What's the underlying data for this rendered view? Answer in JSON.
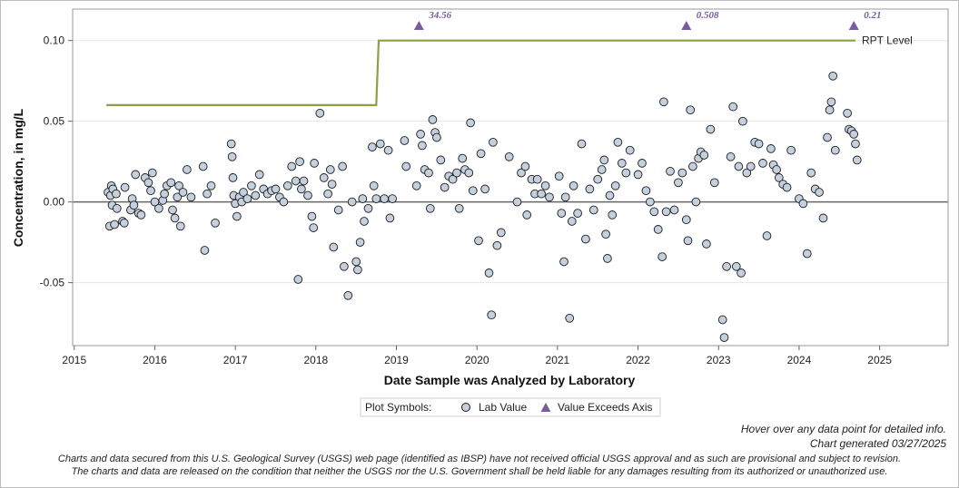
{
  "chart_data": {
    "type": "scatter",
    "xlabel": "Date Sample was Analyzed by Laboratory",
    "ylabel": "Concentration, in mg/L",
    "xlim": [
      2014.98,
      2025.85
    ],
    "ylim": [
      -0.089,
      0.1195
    ],
    "x_ticks": [
      "2015",
      "2016",
      "2017",
      "2018",
      "2019",
      "2020",
      "2021",
      "2022",
      "2023",
      "2024",
      "2025"
    ],
    "y_ticks": [
      "0.10",
      "0.05",
      "0.00",
      "-0.05"
    ],
    "grid": true,
    "reference_line": {
      "label": "RPT Level",
      "color": "#8aa144",
      "steps": [
        [
          2015.4,
          0.06
        ],
        [
          2018.75,
          0.06
        ],
        [
          2018.78,
          0.1
        ],
        [
          2024.7,
          0.1
        ]
      ]
    },
    "zero_line": 0.0,
    "legend": {
      "title": "Plot Symbols:",
      "items": [
        "Lab Value",
        "Value Exceeds Axis"
      ],
      "placement": "bottom"
    },
    "exceeds_axis": [
      {
        "x": 2019.28,
        "label": "34.56"
      },
      {
        "x": 2022.6,
        "label": "0.508"
      },
      {
        "x": 2024.68,
        "label": "0.21"
      }
    ],
    "series": [
      {
        "name": "Lab Value",
        "marker": "circle",
        "fill": "#c5d0de",
        "edge": "#1a1a1a",
        "points": [
          [
            2015.42,
            0.006
          ],
          [
            2015.44,
            -0.015
          ],
          [
            2015.45,
            0.004
          ],
          [
            2015.46,
            0.01
          ],
          [
            2015.47,
            -0.002
          ],
          [
            2015.48,
            0.008
          ],
          [
            2015.5,
            -0.014
          ],
          [
            2015.52,
            0.005
          ],
          [
            2015.53,
            -0.004
          ],
          [
            2015.6,
            -0.012
          ],
          [
            2015.62,
            -0.013
          ],
          [
            2015.63,
            0.009
          ],
          [
            2015.7,
            -0.005
          ],
          [
            2015.72,
            0.002
          ],
          [
            2015.74,
            -0.002
          ],
          [
            2015.76,
            0.017
          ],
          [
            2015.8,
            -0.007
          ],
          [
            2015.83,
            -0.008
          ],
          [
            2015.88,
            0.015
          ],
          [
            2015.92,
            0.012
          ],
          [
            2015.95,
            0.007
          ],
          [
            2015.97,
            0.018
          ],
          [
            2016.0,
            0.0
          ],
          [
            2016.05,
            -0.004
          ],
          [
            2016.1,
            0.001
          ],
          [
            2016.12,
            0.005
          ],
          [
            2016.15,
            0.01
          ],
          [
            2016.2,
            0.012
          ],
          [
            2016.22,
            -0.005
          ],
          [
            2016.25,
            -0.01
          ],
          [
            2016.28,
            0.003
          ],
          [
            2016.3,
            0.01
          ],
          [
            2016.32,
            -0.015
          ],
          [
            2016.35,
            0.006
          ],
          [
            2016.4,
            0.02
          ],
          [
            2016.45,
            0.003
          ],
          [
            2016.6,
            0.022
          ],
          [
            2016.62,
            -0.03
          ],
          [
            2016.65,
            0.005
          ],
          [
            2016.7,
            0.01
          ],
          [
            2016.75,
            -0.013
          ],
          [
            2016.95,
            0.036
          ],
          [
            2016.96,
            0.028
          ],
          [
            2016.97,
            0.015
          ],
          [
            2016.98,
            0.004
          ],
          [
            2017.0,
            -0.001
          ],
          [
            2017.02,
            -0.009
          ],
          [
            2017.05,
            0.003
          ],
          [
            2017.08,
            0.0
          ],
          [
            2017.1,
            0.006
          ],
          [
            2017.15,
            0.002
          ],
          [
            2017.2,
            0.01
          ],
          [
            2017.25,
            0.004
          ],
          [
            2017.3,
            0.017
          ],
          [
            2017.35,
            0.008
          ],
          [
            2017.4,
            0.005
          ],
          [
            2017.45,
            0.007
          ],
          [
            2017.5,
            0.008
          ],
          [
            2017.55,
            0.003
          ],
          [
            2017.6,
            0.0
          ],
          [
            2017.65,
            0.01
          ],
          [
            2017.7,
            0.022
          ],
          [
            2017.75,
            0.013
          ],
          [
            2017.78,
            -0.048
          ],
          [
            2017.8,
            0.025
          ],
          [
            2017.82,
            0.008
          ],
          [
            2017.85,
            0.013
          ],
          [
            2017.9,
            0.004
          ],
          [
            2017.95,
            -0.009
          ],
          [
            2017.97,
            -0.016
          ],
          [
            2017.98,
            0.024
          ],
          [
            2018.05,
            0.055
          ],
          [
            2018.1,
            0.015
          ],
          [
            2018.15,
            0.005
          ],
          [
            2018.18,
            0.02
          ],
          [
            2018.2,
            0.011
          ],
          [
            2018.22,
            -0.028
          ],
          [
            2018.28,
            -0.005
          ],
          [
            2018.33,
            0.022
          ],
          [
            2018.35,
            -0.04
          ],
          [
            2018.4,
            -0.058
          ],
          [
            2018.45,
            0.0
          ],
          [
            2018.5,
            -0.037
          ],
          [
            2018.52,
            -0.042
          ],
          [
            2018.55,
            -0.025
          ],
          [
            2018.58,
            0.002
          ],
          [
            2018.6,
            -0.012
          ],
          [
            2018.65,
            -0.004
          ],
          [
            2018.7,
            0.034
          ],
          [
            2018.72,
            0.01
          ],
          [
            2018.75,
            0.002
          ],
          [
            2018.8,
            0.036
          ],
          [
            2018.85,
            0.002
          ],
          [
            2018.9,
            0.032
          ],
          [
            2018.92,
            -0.01
          ],
          [
            2018.95,
            0.002
          ],
          [
            2019.1,
            0.038
          ],
          [
            2019.12,
            0.022
          ],
          [
            2019.25,
            0.01
          ],
          [
            2019.3,
            0.042
          ],
          [
            2019.32,
            0.035
          ],
          [
            2019.35,
            0.02
          ],
          [
            2019.4,
            0.018
          ],
          [
            2019.42,
            -0.004
          ],
          [
            2019.45,
            0.051
          ],
          [
            2019.48,
            0.043
          ],
          [
            2019.5,
            0.04
          ],
          [
            2019.55,
            0.026
          ],
          [
            2019.6,
            0.009
          ],
          [
            2019.65,
            0.016
          ],
          [
            2019.7,
            0.014
          ],
          [
            2019.75,
            0.018
          ],
          [
            2019.78,
            -0.004
          ],
          [
            2019.82,
            0.027
          ],
          [
            2019.85,
            0.02
          ],
          [
            2019.9,
            0.018
          ],
          [
            2019.92,
            0.049
          ],
          [
            2019.95,
            0.007
          ],
          [
            2020.02,
            -0.024
          ],
          [
            2020.05,
            0.03
          ],
          [
            2020.1,
            0.008
          ],
          [
            2020.15,
            -0.044
          ],
          [
            2020.18,
            -0.07
          ],
          [
            2020.2,
            0.037
          ],
          [
            2020.25,
            -0.027
          ],
          [
            2020.3,
            -0.019
          ],
          [
            2020.4,
            0.028
          ],
          [
            2020.5,
            0.0
          ],
          [
            2020.55,
            0.018
          ],
          [
            2020.6,
            0.022
          ],
          [
            2020.62,
            -0.008
          ],
          [
            2020.68,
            0.014
          ],
          [
            2020.72,
            0.005
          ],
          [
            2020.75,
            0.014
          ],
          [
            2020.8,
            0.005
          ],
          [
            2020.85,
            0.01
          ],
          [
            2020.9,
            0.003
          ],
          [
            2021.02,
            0.016
          ],
          [
            2021.05,
            -0.007
          ],
          [
            2021.08,
            -0.037
          ],
          [
            2021.1,
            0.003
          ],
          [
            2021.15,
            -0.072
          ],
          [
            2021.18,
            -0.012
          ],
          [
            2021.2,
            0.01
          ],
          [
            2021.25,
            -0.007
          ],
          [
            2021.3,
            0.036
          ],
          [
            2021.35,
            -0.023
          ],
          [
            2021.4,
            0.008
          ],
          [
            2021.45,
            -0.005
          ],
          [
            2021.5,
            0.014
          ],
          [
            2021.55,
            0.02
          ],
          [
            2021.58,
            0.026
          ],
          [
            2021.6,
            -0.02
          ],
          [
            2021.62,
            -0.035
          ],
          [
            2021.65,
            0.004
          ],
          [
            2021.68,
            -0.008
          ],
          [
            2021.72,
            0.01
          ],
          [
            2021.75,
            0.037
          ],
          [
            2021.8,
            0.024
          ],
          [
            2021.85,
            0.018
          ],
          [
            2021.9,
            0.032
          ],
          [
            2022.0,
            0.017
          ],
          [
            2022.05,
            0.024
          ],
          [
            2022.1,
            0.007
          ],
          [
            2022.15,
            0.0
          ],
          [
            2022.2,
            -0.006
          ],
          [
            2022.25,
            -0.017
          ],
          [
            2022.3,
            -0.034
          ],
          [
            2022.32,
            0.062
          ],
          [
            2022.35,
            -0.006
          ],
          [
            2022.4,
            0.019
          ],
          [
            2022.45,
            -0.005
          ],
          [
            2022.5,
            0.012
          ],
          [
            2022.55,
            0.018
          ],
          [
            2022.6,
            -0.011
          ],
          [
            2022.62,
            -0.024
          ],
          [
            2022.65,
            0.057
          ],
          [
            2022.68,
            0.022
          ],
          [
            2022.72,
            0.0
          ],
          [
            2022.75,
            0.027
          ],
          [
            2022.78,
            0.031
          ],
          [
            2022.82,
            0.029
          ],
          [
            2022.85,
            -0.026
          ],
          [
            2022.9,
            0.045
          ],
          [
            2022.95,
            0.012
          ],
          [
            2023.05,
            -0.073
          ],
          [
            2023.07,
            -0.084
          ],
          [
            2023.1,
            -0.04
          ],
          [
            2023.15,
            0.028
          ],
          [
            2023.18,
            0.059
          ],
          [
            2023.22,
            -0.04
          ],
          [
            2023.25,
            0.022
          ],
          [
            2023.28,
            -0.044
          ],
          [
            2023.3,
            0.05
          ],
          [
            2023.35,
            0.018
          ],
          [
            2023.4,
            0.022
          ],
          [
            2023.45,
            0.037
          ],
          [
            2023.5,
            0.036
          ],
          [
            2023.55,
            0.024
          ],
          [
            2023.6,
            -0.021
          ],
          [
            2023.65,
            0.033
          ],
          [
            2023.68,
            0.023
          ],
          [
            2023.72,
            0.02
          ],
          [
            2023.75,
            0.015
          ],
          [
            2023.8,
            0.011
          ],
          [
            2023.85,
            0.009
          ],
          [
            2023.9,
            0.032
          ],
          [
            2024.0,
            0.002
          ],
          [
            2024.05,
            -0.001
          ],
          [
            2024.1,
            -0.032
          ],
          [
            2024.15,
            0.018
          ],
          [
            2024.2,
            0.008
          ],
          [
            2024.25,
            0.006
          ],
          [
            2024.3,
            -0.01
          ],
          [
            2024.35,
            0.04
          ],
          [
            2024.38,
            0.057
          ],
          [
            2024.4,
            0.062
          ],
          [
            2024.42,
            0.078
          ],
          [
            2024.45,
            0.032
          ],
          [
            2024.6,
            0.055
          ],
          [
            2024.62,
            0.045
          ],
          [
            2024.65,
            0.044
          ],
          [
            2024.68,
            0.042
          ],
          [
            2024.7,
            0.036
          ],
          [
            2024.72,
            0.026
          ]
        ]
      }
    ]
  },
  "notes": {
    "hover": "Hover over any data point for detailed info.",
    "generated": "Chart generated 03/27/2025",
    "disclaimer_1": "Charts and data secured from this U.S. Geological Survey (USGS) web page (identified as IBSP) have not received official USGS approval and as such are provisional and subject to revision.",
    "disclaimer_2": "The charts and data are released on the condition that neither the USGS nor the U.S. Government shall be held liable for any damages resulting from its authorized or unauthorized use."
  },
  "colors": {
    "marker_fill": "#c5d0de",
    "exceed": "#7a5c9e",
    "rpt": "#8aa144",
    "zero": "#666666",
    "grid": "#e6e6e6"
  }
}
